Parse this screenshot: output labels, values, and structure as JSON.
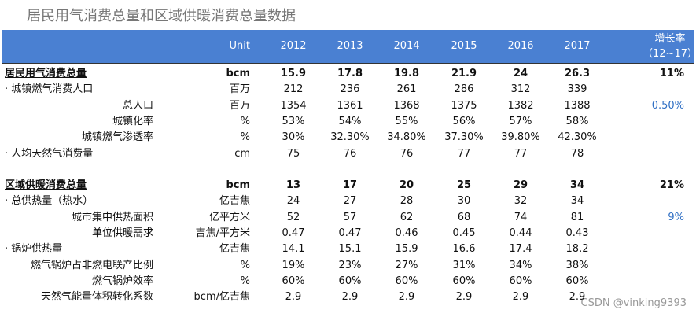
{
  "title": "居民用气消费总量和区域供暖消费总量数据",
  "header": {
    "unit": "Unit",
    "years": [
      "2012",
      "2013",
      "2014",
      "2015",
      "2016",
      "2017"
    ],
    "growth": [
      "增长率",
      "（12~17）"
    ]
  },
  "sections": [
    {
      "total": {
        "label": "居民用气消费总量",
        "unit": "bcm",
        "values": [
          "15.9",
          "17.8",
          "19.8",
          "21.9",
          "24",
          "26.3"
        ],
        "growth": "11%"
      },
      "rows": [
        {
          "label": "· 城镇燃气消费人口",
          "unit": "百万",
          "values": [
            "212",
            "236",
            "261",
            "286",
            "312",
            "339"
          ]
        },
        {
          "label": "总人口",
          "unit": "百万",
          "values": [
            "1354",
            "1361",
            "1368",
            "1375",
            "1382",
            "1388"
          ],
          "growth": "0.50%"
        },
        {
          "label": "城镇化率",
          "unit": "%",
          "values": [
            "53%",
            "54%",
            "55%",
            "56%",
            "57%",
            "58%"
          ]
        },
        {
          "label": "城镇燃气渗透率",
          "unit": "%",
          "values": [
            "30%",
            "32.30%",
            "34.80%",
            "37.30%",
            "39.80%",
            "42.30%"
          ]
        },
        {
          "label": "· 人均天然气消费量",
          "unit": "cm",
          "values": [
            "75",
            "76",
            "76",
            "77",
            "77",
            "78"
          ]
        }
      ]
    },
    {
      "total": {
        "label": "区域供暖消费总量",
        "unit": "bcm",
        "values": [
          "13",
          "17",
          "20",
          "25",
          "29",
          "34"
        ],
        "growth": "21%"
      },
      "rows": [
        {
          "label": "· 总供热量（热水）",
          "unit": "亿吉焦",
          "values": [
            "24",
            "27",
            "28",
            "30",
            "32",
            "34"
          ]
        },
        {
          "label": "城市集中供热面积",
          "unit": "亿平方米",
          "values": [
            "52",
            "57",
            "62",
            "68",
            "74",
            "81"
          ],
          "growth": "9%"
        },
        {
          "label": "单位供暖需求",
          "unit": "吉焦/平方米",
          "values": [
            "0.47",
            "0.47",
            "0.46",
            "0.45",
            "0.44",
            "0.43"
          ]
        },
        {
          "label": "· 锅炉供热量",
          "unit": "亿吉焦",
          "values": [
            "14.1",
            "15.1",
            "15.9",
            "16.6",
            "17.4",
            "18.2"
          ]
        },
        {
          "label": "燃气锅炉占非燃电联产比例",
          "unit": "%",
          "values": [
            "19%",
            "23%",
            "27%",
            "31%",
            "34%",
            "38%"
          ]
        },
        {
          "label": "燃气锅炉效率",
          "unit": "%",
          "values": [
            "60%",
            "60%",
            "60%",
            "60%",
            "60%",
            "60%"
          ]
        },
        {
          "label": "天然气能量体积转化系数",
          "unit": "bcm/亿吉焦",
          "values": [
            "2.9",
            "2.9",
            "2.9",
            "2.9",
            "2.9",
            "2.9"
          ]
        }
      ]
    }
  ],
  "watermark": "CSDN @vinking9393"
}
